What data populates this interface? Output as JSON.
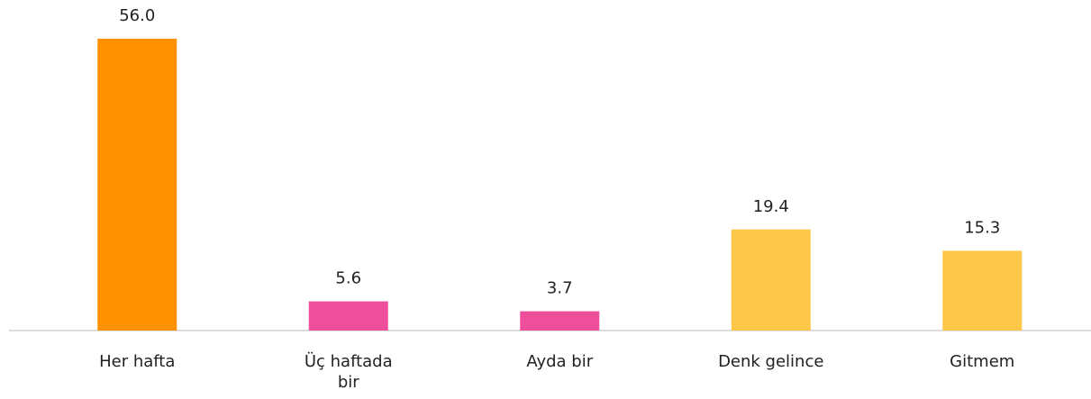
{
  "chart_data": {
    "type": "bar",
    "categories": [
      "Her hafta",
      "Üç haftada bir",
      "Ayda bir",
      "Denk gelince",
      "Gitmem"
    ],
    "values": [
      56.0,
      5.6,
      3.7,
      19.4,
      15.3
    ],
    "value_labels": [
      "56.0",
      "5.6",
      "3.7",
      "19.4",
      "15.3"
    ],
    "colors": [
      "#ff9100",
      "#ee4f9a",
      "#ee4f9a",
      "#fdc84a",
      "#fdc84a"
    ],
    "ylim": [
      0,
      56
    ]
  }
}
